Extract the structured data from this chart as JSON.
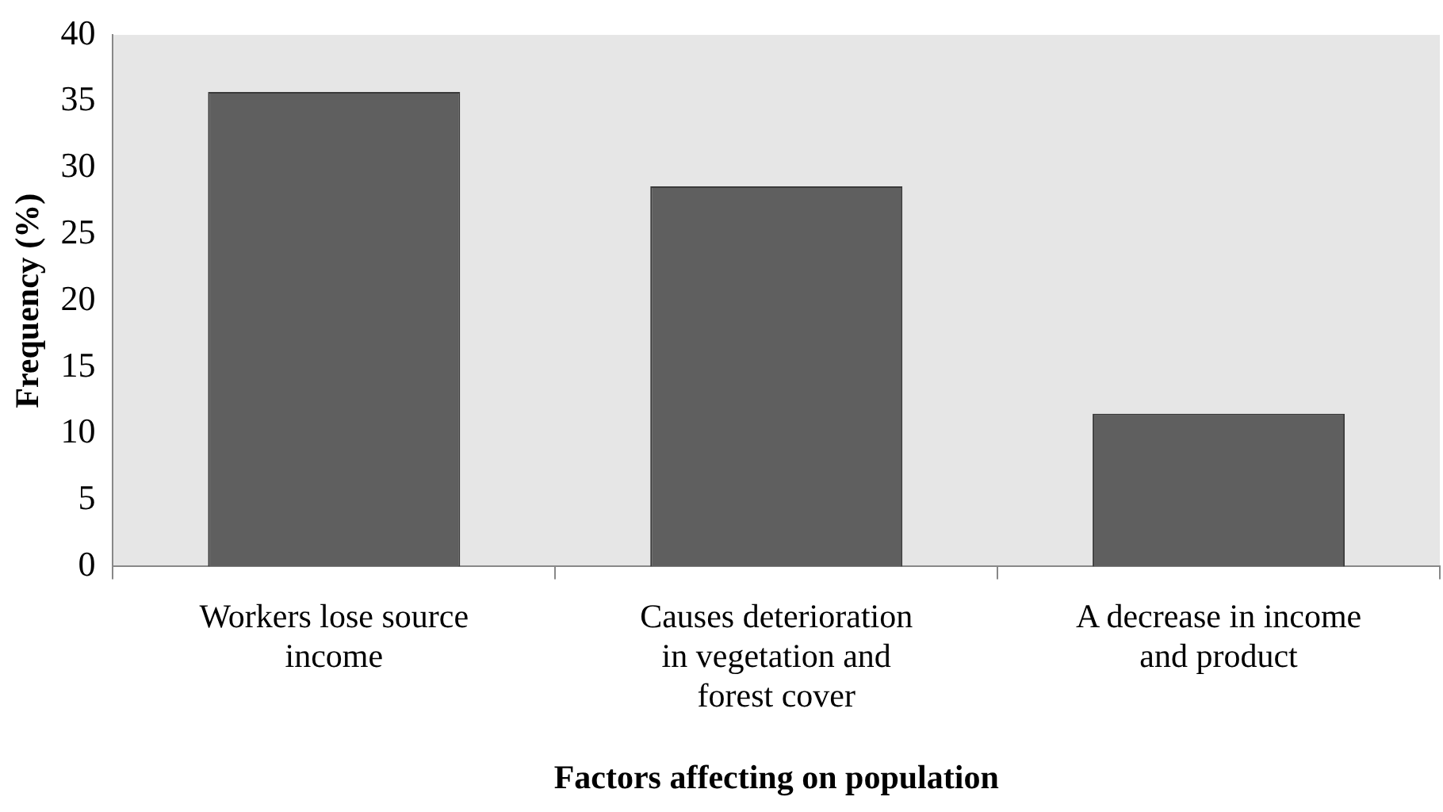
{
  "chart_data": {
    "type": "bar",
    "xlabel": "Factors affecting on population",
    "ylabel": "Frequency (%)",
    "categories": [
      "Workers lose source income",
      "Causes deterioration in vegetation and forest cover",
      "A decrease in income and product"
    ],
    "values": [
      35.7,
      28.6,
      11.5
    ],
    "color": "#5f5f5f",
    "ylim": [
      0,
      40
    ],
    "yticks": [
      0,
      5,
      10,
      15,
      20,
      25,
      30,
      35,
      40
    ],
    "grid": false,
    "legend": false
  }
}
